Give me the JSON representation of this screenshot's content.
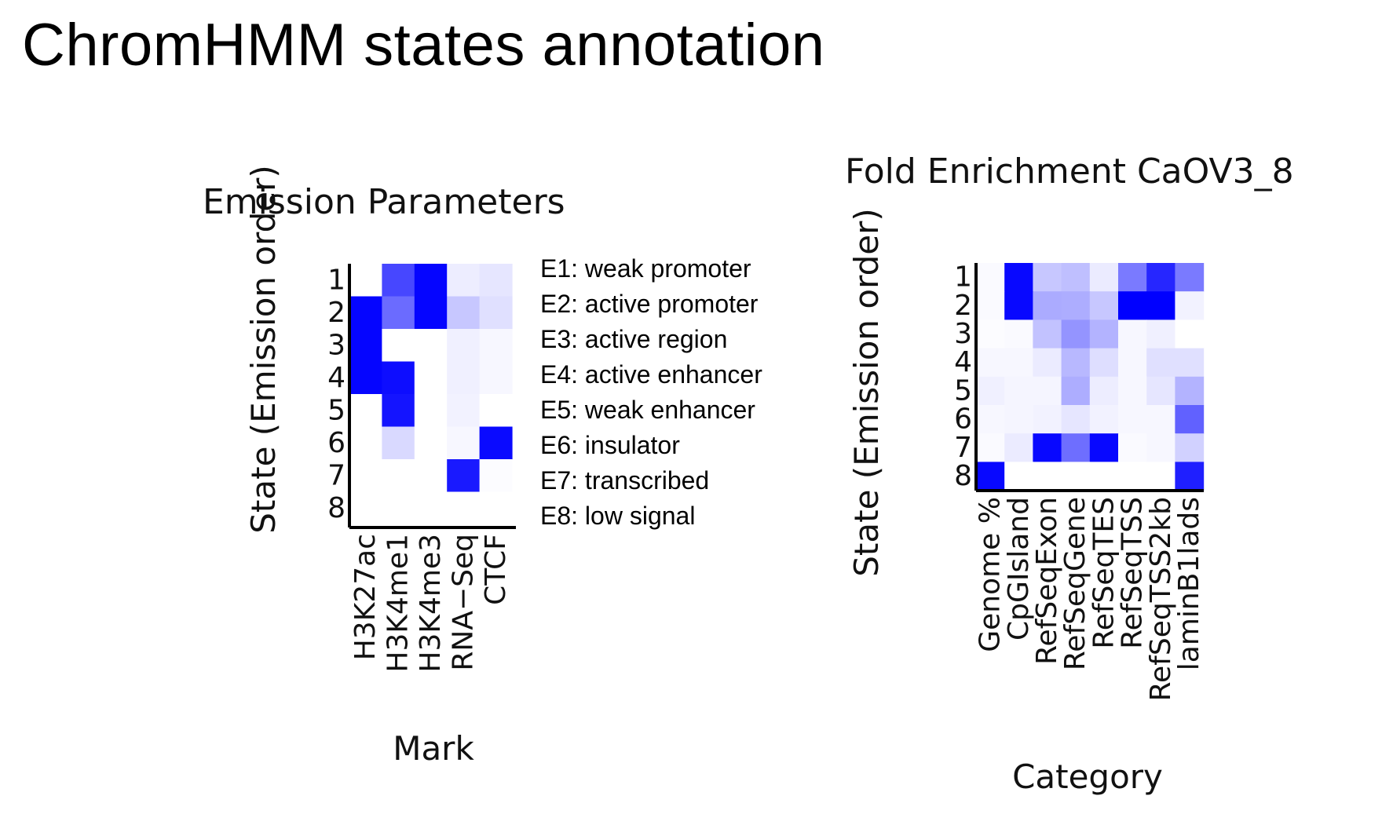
{
  "slide": {
    "title": "ChromHMM states annotation"
  },
  "legend": {
    "items": [
      "E1: weak promoter",
      "E2: active promoter",
      "E3: active region",
      "E4: active enhancer",
      "E5: weak enhancer",
      "E6: insulator",
      "E7: transcribed",
      "E8: low signal"
    ]
  },
  "colors": {
    "high": "#0000ff",
    "low": "#ffffff"
  },
  "chart_data": [
    {
      "type": "heatmap",
      "title": "Emission Parameters",
      "xlabel": "Mark",
      "ylabel": "State (Emission order)",
      "rows": [
        "1",
        "2",
        "3",
        "4",
        "5",
        "6",
        "7",
        "8"
      ],
      "columns": [
        "H3K27ac",
        "H3K4me1",
        "H3K4me3",
        "RNA−Seq",
        "CTCF"
      ],
      "values": [
        [
          0.0,
          0.72,
          0.98,
          0.07,
          0.1
        ],
        [
          0.98,
          0.58,
          0.98,
          0.22,
          0.12
        ],
        [
          0.98,
          0.0,
          0.0,
          0.06,
          0.03
        ],
        [
          0.98,
          0.95,
          0.0,
          0.06,
          0.03
        ],
        [
          0.0,
          0.92,
          0.0,
          0.05,
          0.0
        ],
        [
          0.0,
          0.15,
          0.0,
          0.03,
          0.96
        ],
        [
          0.0,
          0.0,
          0.0,
          0.9,
          0.01
        ],
        [
          0.0,
          0.0,
          0.0,
          0.0,
          0.0
        ]
      ]
    },
    {
      "type": "heatmap",
      "title": "Fold Enrichment CaOV3_8",
      "xlabel": "Category",
      "ylabel": "State (Emission order)",
      "rows": [
        "1",
        "2",
        "3",
        "4",
        "5",
        "6",
        "7",
        "8"
      ],
      "columns": [
        "Genome %",
        "CpGIsland",
        "RefSeqExon",
        "RefSeqGene",
        "RefSeqTES",
        "RefSeqTSS",
        "RefSeqTSS2kb",
        "laminB1lads"
      ],
      "values": [
        [
          0.02,
          0.97,
          0.22,
          0.25,
          0.08,
          0.52,
          0.85,
          0.52
        ],
        [
          0.02,
          0.97,
          0.33,
          0.32,
          0.22,
          1.0,
          1.0,
          0.05
        ],
        [
          0.01,
          0.02,
          0.24,
          0.42,
          0.3,
          0.03,
          0.06,
          0.0
        ],
        [
          0.03,
          0.03,
          0.08,
          0.28,
          0.13,
          0.03,
          0.12,
          0.12
        ],
        [
          0.06,
          0.04,
          0.04,
          0.32,
          0.07,
          0.03,
          0.1,
          0.3
        ],
        [
          0.03,
          0.04,
          0.05,
          0.1,
          0.05,
          0.03,
          0.03,
          0.62
        ],
        [
          0.02,
          0.08,
          0.97,
          0.57,
          0.97,
          0.02,
          0.03,
          0.18
        ],
        [
          0.97,
          0.0,
          0.0,
          0.0,
          0.0,
          0.0,
          0.0,
          0.88
        ]
      ]
    }
  ]
}
